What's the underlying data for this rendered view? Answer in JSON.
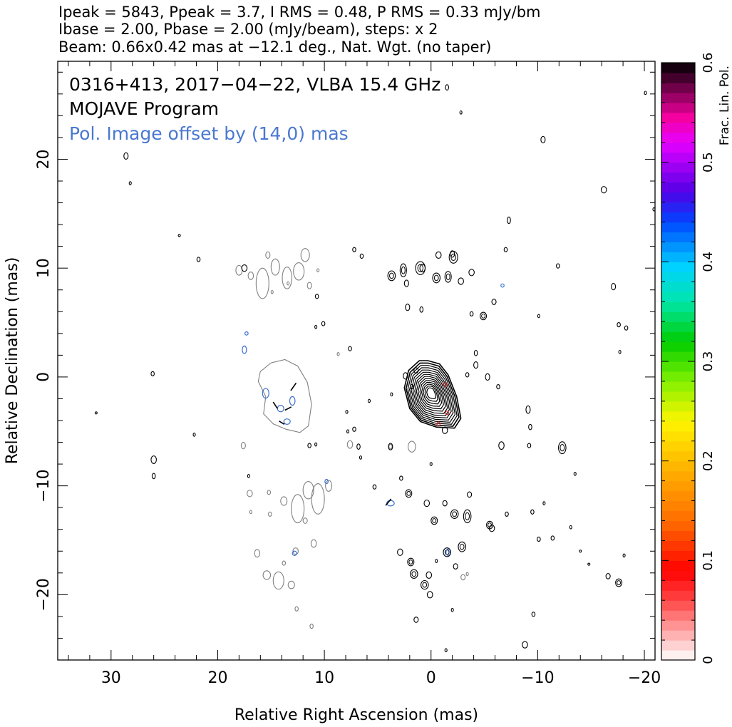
{
  "header": {
    "line1": "Ipeak = 5843, Ppeak = 3.7, I RMS = 0.48, P RMS = 0.33 mJy/bm",
    "line2": "Ibase = 2.00, Pbase = 2.00 (mJy/beam), steps: x 2",
    "line3": "Beam: 0.66x0.42 mas at −12.1 deg., Nat. Wgt. (no taper)"
  },
  "colors": {
    "total_intensity": "#000000",
    "offset_image": "#808080",
    "polarization": "#3a6fd0",
    "pol_label": "#4a78d0",
    "core_accent": "#d02020"
  },
  "chart_data": {
    "type": "heatmap",
    "title": "0316+413, 2017−04−22, VLBA 15.4 GHz",
    "subtitle": "MOJAVE Program",
    "annotation": "Pol. Image offset by (14,0) mas",
    "xlabel": "Relative Right Ascension (mas)",
    "ylabel": "Relative Declination (mas)",
    "xlim": [
      35,
      -21
    ],
    "ylim": [
      -26,
      29
    ],
    "x_ticks": [
      30,
      20,
      10,
      0,
      -10,
      -20
    ],
    "x_tick_labels": [
      "30",
      "20",
      "10",
      "0",
      "−10",
      "−20"
    ],
    "y_ticks": [
      20,
      10,
      0,
      -10,
      -20
    ],
    "y_tick_labels": [
      "20",
      "10",
      "0",
      "−10",
      "−20"
    ],
    "x_minor_step": 2,
    "y_minor_step": 2,
    "grid": false,
    "colorbar": {
      "label": "Frac. Lin. Pol.",
      "range": [
        0,
        0.6
      ],
      "ticks": [
        0,
        0.1,
        0.2,
        0.3,
        0.4,
        0.5,
        0.6
      ],
      "tick_labels": [
        "0",
        "0.1",
        "0.2",
        "0.3",
        "0.4",
        "0.5",
        "0.6"
      ],
      "minor_step": 0.02,
      "position": "right"
    },
    "core": {
      "peak": [
        0,
        -2
      ],
      "outline": [
        [
          0.3,
          1.5
        ],
        [
          -0.8,
          1.2
        ],
        [
          -1.6,
          0.2
        ],
        [
          -2.4,
          -1.8
        ],
        [
          -2.8,
          -3.8
        ],
        [
          -2.2,
          -4.7
        ],
        [
          -0.5,
          -4.6
        ],
        [
          1.0,
          -4.1
        ],
        [
          2.0,
          -2.9
        ],
        [
          2.5,
          -1.0
        ],
        [
          2.1,
          0.6
        ],
        [
          1.1,
          1.5
        ]
      ],
      "contour_levels": 14
    },
    "offset_core": {
      "outline": [
        [
          16.0,
          0.5
        ],
        [
          15.0,
          1.3
        ],
        [
          13.7,
          1.6
        ],
        [
          12.5,
          1.0
        ],
        [
          11.6,
          -0.5
        ],
        [
          11.2,
          -2.5
        ],
        [
          11.5,
          -4.5
        ],
        [
          12.3,
          -5.1
        ],
        [
          13.6,
          -4.8
        ],
        [
          14.8,
          -4.3
        ],
        [
          15.7,
          -3.4
        ],
        [
          15.5,
          -1.8
        ],
        [
          16.2,
          -0.4
        ]
      ]
    },
    "pol_core_blobs": [
      {
        "x": 15.5,
        "y": -1.5,
        "rx": 0.3,
        "ry": 0.45
      },
      {
        "x": 13.0,
        "y": -2.2,
        "rx": 0.25,
        "ry": 0.4
      },
      {
        "x": 14.1,
        "y": -2.9,
        "rx": 0.3,
        "ry": 0.3
      },
      {
        "x": 13.5,
        "y": -4.1,
        "rx": 0.3,
        "ry": 0.25
      },
      {
        "x": 17.5,
        "y": 2.5,
        "rx": 0.2,
        "ry": 0.35
      },
      {
        "x": 17.3,
        "y": 4.0,
        "rx": 0.15,
        "ry": 0.15
      },
      {
        "x": 3.8,
        "y": -11.6,
        "rx": 0.35,
        "ry": 0.25
      },
      {
        "x": -1.6,
        "y": -16.1,
        "rx": 0.2,
        "ry": 0.3
      },
      {
        "x": 12.8,
        "y": -16.2,
        "rx": 0.2,
        "ry": 0.2
      },
      {
        "x": -6.7,
        "y": 8.4,
        "rx": 0.15,
        "ry": 0.15
      },
      {
        "x": 9.8,
        "y": -9.6,
        "rx": 0.15,
        "ry": 0.2
      }
    ],
    "pol_vectors": [
      {
        "x": 12.9,
        "y": -0.9,
        "dx": -0.5,
        "dy": 0.7
      },
      {
        "x": 13.4,
        "y": -2.9,
        "dx": -0.6,
        "dy": 0.3
      },
      {
        "x": 14.6,
        "y": -2.6,
        "dx": -0.4,
        "dy": -0.6
      },
      {
        "x": 14.0,
        "y": -4.2,
        "dx": 0.5,
        "dy": 0.3
      },
      {
        "x": 4.0,
        "y": -11.5,
        "dx": 0.5,
        "dy": -0.6
      }
    ],
    "noise_islands_black": [
      {
        "x": 28.6,
        "y": 20.3,
        "rx": 0.2,
        "ry": 0.3
      },
      {
        "x": 28.2,
        "y": 17.8,
        "rx": 0.1,
        "ry": 0.15
      },
      {
        "x": 21.8,
        "y": 10.8,
        "rx": 0.15,
        "ry": 0.2
      },
      {
        "x": 26.1,
        "y": 0.3,
        "rx": 0.15,
        "ry": 0.2
      },
      {
        "x": 26.0,
        "y": -7.6,
        "rx": 0.25,
        "ry": 0.35
      },
      {
        "x": 26.0,
        "y": -9.1,
        "rx": 0.15,
        "ry": 0.25
      },
      {
        "x": 22.2,
        "y": -5.3,
        "rx": 0.1,
        "ry": 0.15
      },
      {
        "x": 17.5,
        "y": 10.0,
        "rx": 0.25,
        "ry": 0.3
      },
      {
        "x": 3.7,
        "y": 9.3,
        "rx": 0.35,
        "ry": 0.45
      },
      {
        "x": 2.6,
        "y": 9.8,
        "rx": 0.3,
        "ry": 0.6
      },
      {
        "x": 2.3,
        "y": 8.6,
        "rx": 0.2,
        "ry": 0.3
      },
      {
        "x": 1.0,
        "y": 10.0,
        "rx": 0.45,
        "ry": 0.6
      },
      {
        "x": 0.8,
        "y": 10.0,
        "rx": 0.25,
        "ry": 0.35
      },
      {
        "x": -0.5,
        "y": 9.1,
        "rx": 0.35,
        "ry": 0.45
      },
      {
        "x": -0.7,
        "y": 11.2,
        "rx": 0.25,
        "ry": 0.3
      },
      {
        "x": -1.6,
        "y": 9.2,
        "rx": 0.3,
        "ry": 0.5
      },
      {
        "x": -2.1,
        "y": 11.0,
        "rx": 0.4,
        "ry": 0.55
      },
      {
        "x": -2.0,
        "y": 11.3,
        "rx": 0.2,
        "ry": 0.3
      },
      {
        "x": -2.8,
        "y": 8.8,
        "rx": 0.25,
        "ry": 0.3
      },
      {
        "x": -3.8,
        "y": 9.6,
        "rx": 0.25,
        "ry": 0.3
      },
      {
        "x": 7.2,
        "y": 11.7,
        "rx": 0.15,
        "ry": 0.2
      },
      {
        "x": 6.5,
        "y": 11.1,
        "rx": 0.15,
        "ry": 0.2
      },
      {
        "x": 2.2,
        "y": 6.4,
        "rx": 0.2,
        "ry": 0.3
      },
      {
        "x": 0.9,
        "y": 6.2,
        "rx": 0.15,
        "ry": 0.25
      },
      {
        "x": -3.8,
        "y": 5.8,
        "rx": 0.15,
        "ry": 0.2
      },
      {
        "x": -4.9,
        "y": 5.6,
        "rx": 0.3,
        "ry": 0.35
      },
      {
        "x": -5.9,
        "y": 6.9,
        "rx": 0.2,
        "ry": 0.25
      },
      {
        "x": -7.0,
        "y": 11.7,
        "rx": 0.15,
        "ry": 0.2
      },
      {
        "x": -7.3,
        "y": 14.4,
        "rx": 0.15,
        "ry": 0.3
      },
      {
        "x": -4.2,
        "y": 1.1,
        "rx": 0.2,
        "ry": 0.3
      },
      {
        "x": -4.2,
        "y": 2.2,
        "rx": 0.15,
        "ry": 0.25
      },
      {
        "x": -3.4,
        "y": 0.2,
        "rx": 0.15,
        "ry": 0.2
      },
      {
        "x": -5.3,
        "y": 0.0,
        "rx": 0.2,
        "ry": 0.3
      },
      {
        "x": -6.3,
        "y": -0.9,
        "rx": 0.15,
        "ry": 0.2
      },
      {
        "x": 2.4,
        "y": 0.1,
        "rx": 0.2,
        "ry": 0.3
      },
      {
        "x": 1.4,
        "y": 0.6,
        "rx": 0.2,
        "ry": 0.25
      },
      {
        "x": 1.8,
        "y": -0.9,
        "rx": 0.15,
        "ry": 0.2
      },
      {
        "x": 3.7,
        "y": -1.6,
        "rx": 0.1,
        "ry": 0.15
      },
      {
        "x": -1.3,
        "y": -4.9,
        "rx": 0.25,
        "ry": 0.3
      },
      {
        "x": -11.9,
        "y": 10.2,
        "rx": 0.15,
        "ry": 0.2
      },
      {
        "x": -10.5,
        "y": 21.8,
        "rx": 0.2,
        "ry": 0.3
      },
      {
        "x": -16.2,
        "y": 17.2,
        "rx": 0.25,
        "ry": 0.3
      },
      {
        "x": -17.1,
        "y": 8.3,
        "rx": 0.2,
        "ry": 0.3
      },
      {
        "x": -17.6,
        "y": 4.8,
        "rx": 0.15,
        "ry": 0.2
      },
      {
        "x": -18.3,
        "y": 4.5,
        "rx": 0.15,
        "ry": 0.2
      },
      {
        "x": -17.7,
        "y": 2.3,
        "rx": 0.1,
        "ry": 0.15
      },
      {
        "x": -10.1,
        "y": 5.6,
        "rx": 0.1,
        "ry": 0.15
      },
      {
        "x": -9.1,
        "y": -3.0,
        "rx": 0.2,
        "ry": 0.35
      },
      {
        "x": -9.3,
        "y": -4.6,
        "rx": 0.15,
        "ry": 0.25
      },
      {
        "x": -9.2,
        "y": -6.3,
        "rx": 0.15,
        "ry": 0.2
      },
      {
        "x": -6.6,
        "y": -6.3,
        "rx": 0.25,
        "ry": 0.35
      },
      {
        "x": -12.3,
        "y": -6.5,
        "rx": 0.35,
        "ry": 0.55
      },
      {
        "x": -13.5,
        "y": -8.9,
        "rx": 0.1,
        "ry": 0.15
      },
      {
        "x": 3.8,
        "y": -6.4,
        "rx": 0.2,
        "ry": 0.3
      },
      {
        "x": 7.2,
        "y": -4.8,
        "rx": 0.15,
        "ry": 0.2
      },
      {
        "x": 6.8,
        "y": -6.4,
        "rx": 0.15,
        "ry": 0.25
      },
      {
        "x": 5.8,
        "y": -2.2,
        "rx": 0.1,
        "ry": 0.15
      },
      {
        "x": 7.9,
        "y": -3.2,
        "rx": 0.1,
        "ry": 0.15
      },
      {
        "x": 5.3,
        "y": -10.1,
        "rx": 0.15,
        "ry": 0.2
      },
      {
        "x": 2.1,
        "y": -10.7,
        "rx": 0.3,
        "ry": 0.35
      },
      {
        "x": 0.0,
        "y": -8.0,
        "rx": 0.1,
        "ry": 0.15
      },
      {
        "x": 2.8,
        "y": -9.3,
        "rx": 0.15,
        "ry": 0.2
      },
      {
        "x": 0.4,
        "y": -11.6,
        "rx": 0.25,
        "ry": 0.3
      },
      {
        "x": -0.3,
        "y": -13.2,
        "rx": 0.3,
        "ry": 0.35
      },
      {
        "x": -1.3,
        "y": -11.6,
        "rx": 0.2,
        "ry": 0.25
      },
      {
        "x": -2.2,
        "y": -12.6,
        "rx": 0.35,
        "ry": 0.4
      },
      {
        "x": -3.4,
        "y": -12.8,
        "rx": 0.35,
        "ry": 0.6
      },
      {
        "x": -3.6,
        "y": -10.8,
        "rx": 0.2,
        "ry": 0.25
      },
      {
        "x": -5.5,
        "y": -13.6,
        "rx": 0.3,
        "ry": 0.35
      },
      {
        "x": -5.7,
        "y": -13.9,
        "rx": 0.25,
        "ry": 0.3
      },
      {
        "x": -7.1,
        "y": -12.6,
        "rx": 0.15,
        "ry": 0.2
      },
      {
        "x": -2.9,
        "y": -15.6,
        "rx": 0.35,
        "ry": 0.45
      },
      {
        "x": -1.5,
        "y": -16.1,
        "rx": 0.35,
        "ry": 0.4
      },
      {
        "x": -0.5,
        "y": -16.9,
        "rx": 0.1,
        "ry": 0.15
      },
      {
        "x": 1.9,
        "y": -17.0,
        "rx": 0.3,
        "ry": 0.35
      },
      {
        "x": 1.6,
        "y": -18.1,
        "rx": 0.35,
        "ry": 0.4
      },
      {
        "x": 0.6,
        "y": -19.1,
        "rx": 0.35,
        "ry": 0.4
      },
      {
        "x": 0.2,
        "y": -18.2,
        "rx": 0.25,
        "ry": 0.3
      },
      {
        "x": 0.1,
        "y": -20.0,
        "rx": 0.25,
        "ry": 0.3
      },
      {
        "x": 2.9,
        "y": -16.1,
        "rx": 0.25,
        "ry": 0.3
      },
      {
        "x": -2.3,
        "y": -17.4,
        "rx": 0.2,
        "ry": 0.25
      },
      {
        "x": -2.0,
        "y": -21.4,
        "rx": 0.1,
        "ry": 0.15
      },
      {
        "x": -1.4,
        "y": -25.1,
        "rx": 0.1,
        "ry": 0.15
      },
      {
        "x": 1.4,
        "y": -22.3,
        "rx": 0.2,
        "ry": 0.25
      },
      {
        "x": -9.5,
        "y": -12.4,
        "rx": 0.15,
        "ry": 0.2
      },
      {
        "x": -10.6,
        "y": -11.6,
        "rx": 0.1,
        "ry": 0.15
      },
      {
        "x": -10.1,
        "y": -14.9,
        "rx": 0.15,
        "ry": 0.2
      },
      {
        "x": -11.4,
        "y": -14.8,
        "rx": 0.15,
        "ry": 0.2
      },
      {
        "x": -13.1,
        "y": -13.8,
        "rx": 0.1,
        "ry": 0.15
      },
      {
        "x": -14.0,
        "y": -16.0,
        "rx": 0.1,
        "ry": 0.1
      },
      {
        "x": -14.8,
        "y": -17.2,
        "rx": 0.1,
        "ry": 0.1
      },
      {
        "x": -16.6,
        "y": -18.3,
        "rx": 0.2,
        "ry": 0.25
      },
      {
        "x": -17.6,
        "y": -18.9,
        "rx": 0.3,
        "ry": 0.35
      },
      {
        "x": -18.1,
        "y": -16.4,
        "rx": 0.1,
        "ry": 0.15
      },
      {
        "x": -9.6,
        "y": -21.8,
        "rx": 0.15,
        "ry": 0.2
      },
      {
        "x": -8.8,
        "y": -24.6,
        "rx": 0.25,
        "ry": 0.3
      },
      {
        "x": -20.9,
        "y": 15.4,
        "rx": 0.1,
        "ry": 0.15
      },
      {
        "x": -20.1,
        "y": 26.1,
        "rx": 0.1,
        "ry": 0.15
      },
      {
        "x": 11.4,
        "y": -6.3,
        "rx": 0.15,
        "ry": 0.2
      },
      {
        "x": 10.8,
        "y": -6.2,
        "rx": 0.1,
        "ry": 0.15
      },
      {
        "x": 31.4,
        "y": -3.3,
        "rx": 0.1,
        "ry": 0.1
      },
      {
        "x": 23.6,
        "y": 13.0,
        "rx": 0.1,
        "ry": 0.1
      },
      {
        "x": 17.1,
        "y": -9.1,
        "rx": 0.1,
        "ry": 0.15
      },
      {
        "x": 6.6,
        "y": -7.4,
        "rx": 0.1,
        "ry": 0.15
      },
      {
        "x": -1.5,
        "y": 26.6,
        "rx": 0.15,
        "ry": 0.25
      },
      {
        "x": -2.8,
        "y": 24.3,
        "rx": 0.1,
        "ry": 0.15
      },
      {
        "x": 10.1,
        "y": 4.9,
        "rx": 0.15,
        "ry": 0.2
      },
      {
        "x": 7.6,
        "y": 2.6,
        "rx": 0.15,
        "ry": 0.2
      },
      {
        "x": 10.8,
        "y": 4.6,
        "rx": 0.1,
        "ry": 0.15
      },
      {
        "x": 10.7,
        "y": 7.4,
        "rx": 0.15,
        "ry": 0.2
      },
      {
        "x": 7.8,
        "y": -5.0,
        "rx": 0.1,
        "ry": 0.15
      }
    ],
    "noise_islands_gray": [
      {
        "x": 18.0,
        "y": 9.8,
        "rx": 0.3,
        "ry": 0.45
      },
      {
        "x": 16.9,
        "y": 9.3,
        "rx": 0.25,
        "ry": 0.35
      },
      {
        "x": 15.8,
        "y": 8.6,
        "rx": 0.6,
        "ry": 1.4
      },
      {
        "x": 14.6,
        "y": 10.1,
        "rx": 0.4,
        "ry": 0.75
      },
      {
        "x": 13.5,
        "y": 9.1,
        "rx": 0.45,
        "ry": 1.0
      },
      {
        "x": 12.4,
        "y": 9.7,
        "rx": 0.5,
        "ry": 0.8
      },
      {
        "x": 11.8,
        "y": 11.2,
        "rx": 0.4,
        "ry": 0.6
      },
      {
        "x": 11.4,
        "y": 8.4,
        "rx": 0.2,
        "ry": 0.3
      },
      {
        "x": 14.9,
        "y": 7.8,
        "rx": 0.1,
        "ry": 0.15
      },
      {
        "x": 15.3,
        "y": 11.2,
        "rx": 0.2,
        "ry": 0.3
      },
      {
        "x": 10.6,
        "y": 9.8,
        "rx": 0.1,
        "ry": 0.15
      },
      {
        "x": 17.0,
        "y": -10.7,
        "rx": 0.25,
        "ry": 0.3
      },
      {
        "x": 15.2,
        "y": -10.6,
        "rx": 0.15,
        "ry": 0.2
      },
      {
        "x": 15.1,
        "y": -12.6,
        "rx": 0.15,
        "ry": 0.2
      },
      {
        "x": 16.9,
        "y": -12.4,
        "rx": 0.1,
        "ry": 0.15
      },
      {
        "x": 13.8,
        "y": -11.4,
        "rx": 0.3,
        "ry": 0.4
      },
      {
        "x": 12.5,
        "y": -12.1,
        "rx": 0.6,
        "ry": 1.3
      },
      {
        "x": 11.5,
        "y": -10.4,
        "rx": 0.5,
        "ry": 0.8
      },
      {
        "x": 10.6,
        "y": -11.2,
        "rx": 0.6,
        "ry": 1.4
      },
      {
        "x": 9.6,
        "y": -10.0,
        "rx": 0.3,
        "ry": 0.5
      },
      {
        "x": 11.8,
        "y": -13.2,
        "rx": 0.2,
        "ry": 0.25
      },
      {
        "x": 16.3,
        "y": -16.2,
        "rx": 0.25,
        "ry": 0.35
      },
      {
        "x": 13.8,
        "y": -17.1,
        "rx": 0.15,
        "ry": 0.2
      },
      {
        "x": 15.4,
        "y": -18.2,
        "rx": 0.35,
        "ry": 0.4
      },
      {
        "x": 14.3,
        "y": -18.7,
        "rx": 0.5,
        "ry": 0.8
      },
      {
        "x": 13.1,
        "y": -19.1,
        "rx": 0.3,
        "ry": 0.35
      },
      {
        "x": 12.7,
        "y": -16.0,
        "rx": 0.25,
        "ry": 0.3
      },
      {
        "x": 11.0,
        "y": -15.3,
        "rx": 0.25,
        "ry": 0.35
      },
      {
        "x": 12.6,
        "y": -21.3,
        "rx": 0.15,
        "ry": 0.2
      },
      {
        "x": 11.2,
        "y": -22.9,
        "rx": 0.15,
        "ry": 0.2
      },
      {
        "x": 17.6,
        "y": -6.3,
        "rx": 0.2,
        "ry": 0.3
      },
      {
        "x": 7.6,
        "y": -6.2,
        "rx": 0.25,
        "ry": 0.35
      },
      {
        "x": 3.8,
        "y": -6.4,
        "rx": 0.15,
        "ry": 0.2
      },
      {
        "x": 1.8,
        "y": -6.4,
        "rx": 0.35,
        "ry": 0.5
      },
      {
        "x": 13.4,
        "y": 8.6,
        "rx": 0.1,
        "ry": 0.15
      },
      {
        "x": 8.7,
        "y": 2.1,
        "rx": 0.1,
        "ry": 0.15
      },
      {
        "x": -3.0,
        "y": -18.4,
        "rx": 0.2,
        "ry": 0.25
      },
      {
        "x": -3.4,
        "y": -18.1,
        "rx": 0.1,
        "ry": 0.15
      }
    ]
  }
}
